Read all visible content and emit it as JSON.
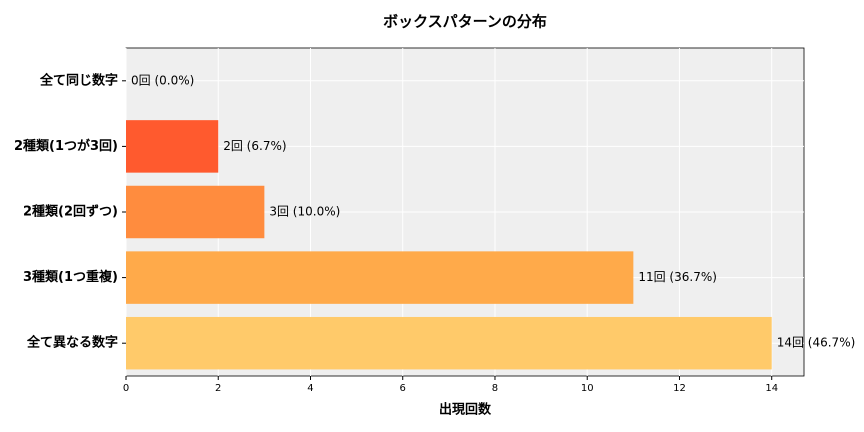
{
  "chart_data": {
    "type": "barh",
    "title": "ボックスパターンの分布",
    "x_label": "出現回数",
    "categories": [
      "全て同じ数字",
      "2種類(1つが3回)",
      "2種類(2回ずつ)",
      "3種類(1つ重複)",
      "全て異なる数字"
    ],
    "values": [
      0,
      2,
      3,
      11,
      14
    ],
    "value_labels": [
      "0回 (0.0%)",
      "2回 (6.7%)",
      "3回 (10.0%)",
      "11回 (36.7%)",
      "14回 (46.7%)"
    ],
    "colors": [
      "#ff4422",
      "#ff5a2e",
      "#ff8c3e",
      "#ffaa4a",
      "#ffca6a"
    ],
    "xlim": [
      0,
      14.7
    ],
    "xticks": [
      0,
      2,
      4,
      6,
      8,
      10,
      12,
      14
    ],
    "grid": true
  }
}
